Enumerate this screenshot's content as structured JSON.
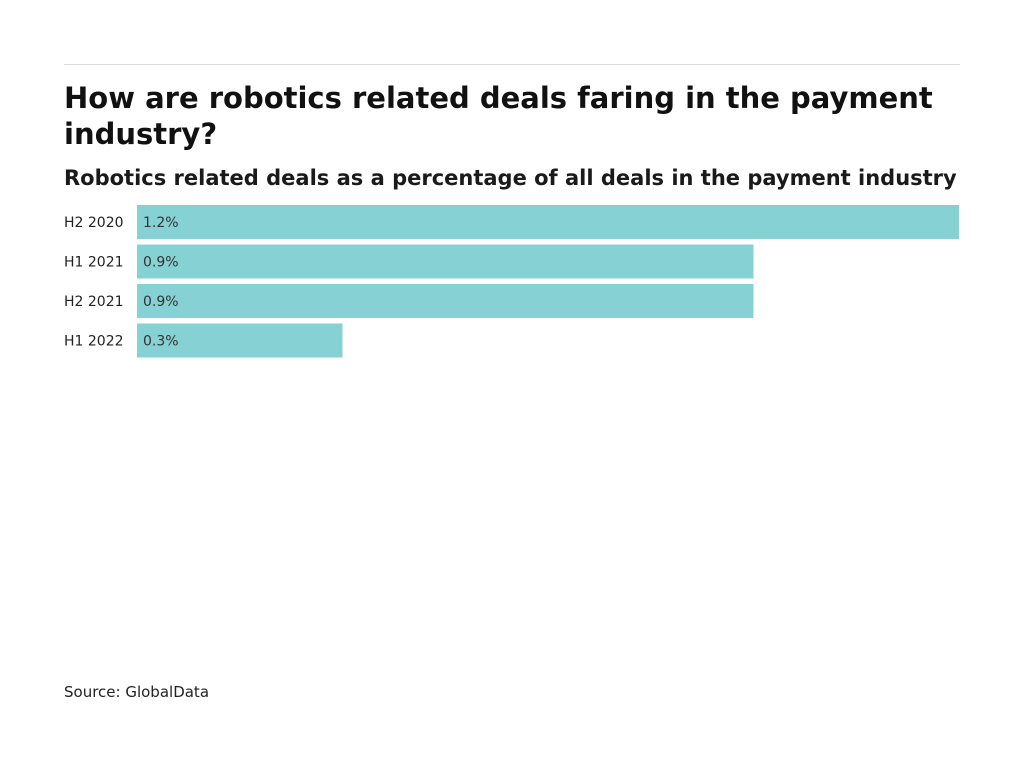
{
  "chart_data": {
    "type": "bar",
    "orientation": "horizontal",
    "title": "How are robotics related deals faring in the payment industry?",
    "subtitle": "Robotics related deals as a percentage of all deals in the payment industry",
    "categories": [
      "H2 2020",
      "H1 2021",
      "H2 2021",
      "H1 2022"
    ],
    "values": [
      1.2,
      0.9,
      0.9,
      0.3
    ],
    "value_labels": [
      "1.2%",
      "0.9%",
      "0.9%",
      "0.3%"
    ],
    "unit": "%",
    "xlim": [
      0,
      1.2
    ],
    "grid": false,
    "bar_color": "#86d1d3"
  },
  "source": "Source: GlobalData"
}
